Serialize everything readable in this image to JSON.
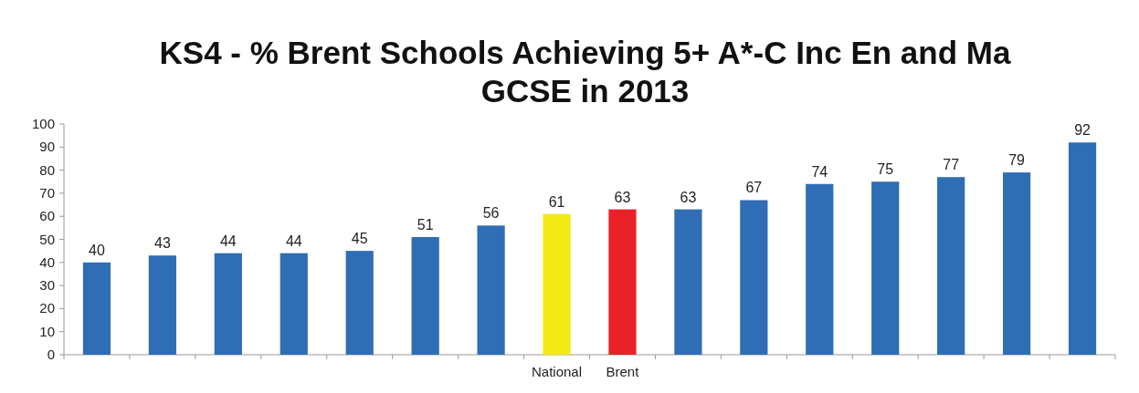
{
  "chart_data": {
    "type": "bar",
    "title": "KS4 - % Brent Schools Achieving 5+  A*-C Inc En and Ma\nGCSE in 2013",
    "categories": [
      null,
      null,
      null,
      null,
      null,
      null,
      null,
      "National",
      "Brent",
      null,
      null,
      null,
      null,
      null,
      null,
      null
    ],
    "values": [
      40,
      43,
      44,
      44,
      45,
      51,
      56,
      61,
      63,
      63,
      67,
      74,
      75,
      77,
      79,
      92
    ],
    "colors": [
      "#2f6db5",
      "#2f6db5",
      "#2f6db5",
      "#2f6db5",
      "#2f6db5",
      "#2f6db5",
      "#2f6db5",
      "#f2ea14",
      "#ea2227",
      "#2f6db5",
      "#2f6db5",
      "#2f6db5",
      "#2f6db5",
      "#2f6db5",
      "#2f6db5",
      "#2f6db5"
    ],
    "ylim": [
      0,
      100
    ],
    "yticks": [
      0,
      10,
      20,
      30,
      40,
      50,
      60,
      70,
      80,
      90,
      100
    ],
    "data_labels": true
  }
}
